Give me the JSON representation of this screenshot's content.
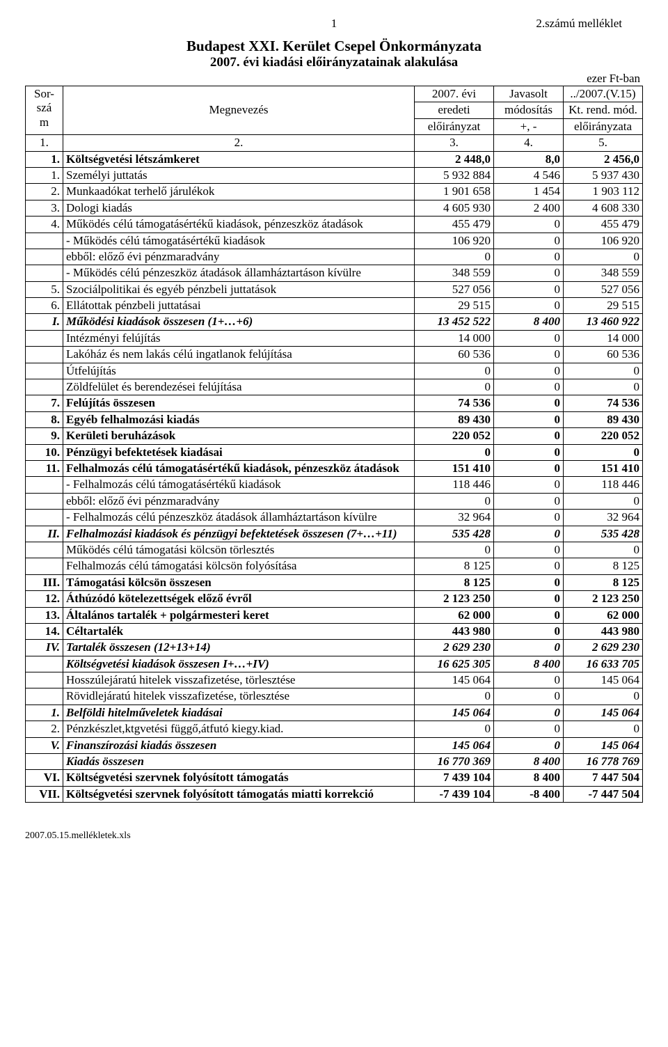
{
  "header": {
    "page_number": "1",
    "attachment": "2.számú melléklet"
  },
  "title": {
    "line1": "Budapest XXI. Kerület Csepel Önkormányzata",
    "line2": "2007. évi kiadási előirányzatainak alakulása"
  },
  "unit_label": "ezer Ft-ban",
  "col_header": {
    "sor1": "Sor-",
    "sor2": "szá",
    "sor3": "m",
    "name": "Megnevezés",
    "c1a": "2007. évi",
    "c1b": "eredeti",
    "c1c": "előirányzat",
    "c2a": "Javasolt",
    "c2b": "módosítás",
    "c2c": "+, -",
    "c3a": "../2007.(V.15)",
    "c3b": "Kt. rend. mód.",
    "c3c": "előirányzata",
    "n1": "1.",
    "n2": "2.",
    "n3": "3.",
    "n4": "4.",
    "n5": "5."
  },
  "rows": [
    {
      "num": "1.",
      "name": "Költségvetési létszámkeret",
      "v1": "2 448,0",
      "v2": "8,0",
      "v3": "2 456,0",
      "cls": "bold"
    },
    {
      "num": "1.",
      "name": "Személyi juttatás",
      "v1": "5 932 884",
      "v2": "4 546",
      "v3": "5 937 430"
    },
    {
      "num": "2.",
      "name": "Munkaadókat terhelő járulékok",
      "v1": "1 901 658",
      "v2": "1 454",
      "v3": "1 903 112"
    },
    {
      "num": "3.",
      "name": "Dologi kiadás",
      "v1": "4 605 930",
      "v2": "2 400",
      "v3": "4 608 330"
    },
    {
      "num": "4.",
      "name": "Működés célú támogatásértékű kiadások, pénzeszköz átadások",
      "v1": "455 479",
      "v2": "0",
      "v3": "455 479"
    },
    {
      "num": "",
      "name": "- Működés célú támogatásértékű kiadások",
      "v1": "106 920",
      "v2": "0",
      "v3": "106 920"
    },
    {
      "num": "",
      "name": "ebből: előző évi pénzmaradvány",
      "v1": "0",
      "v2": "0",
      "v3": "0"
    },
    {
      "num": "",
      "name": "- Működés célú pénzeszköz átadások államháztartáson kívülre",
      "v1": "348 559",
      "v2": "0",
      "v3": "348 559"
    },
    {
      "num": "5.",
      "name": "Szociálpolitikai és egyéb pénzbeli  juttatások",
      "v1": "527 056",
      "v2": "0",
      "v3": "527 056"
    },
    {
      "num": "6.",
      "name": "Ellátottak pénzbeli juttatásai",
      "v1": "29 515",
      "v2": "0",
      "v3": "29 515"
    },
    {
      "num": "I.",
      "name": "Működési kiadások összesen (1+…+6)",
      "v1": "13 452 522",
      "v2": "8 400",
      "v3": "13 460 922",
      "cls": "bolditalic"
    },
    {
      "num": "",
      "name": "Intézményi felújítás",
      "v1": "14 000",
      "v2": "0",
      "v3": "14 000"
    },
    {
      "num": "",
      "name": "Lakóház és nem lakás célú ingatlanok felújítása",
      "v1": "60 536",
      "v2": "0",
      "v3": "60 536"
    },
    {
      "num": "",
      "name": "Útfelújítás",
      "v1": "0",
      "v2": "0",
      "v3": "0"
    },
    {
      "num": "",
      "name": "Zöldfelület és berendezései felújítása",
      "v1": "0",
      "v2": "0",
      "v3": "0"
    },
    {
      "num": "7.",
      "name": "Felújítás összesen",
      "v1": "74 536",
      "v2": "0",
      "v3": "74 536",
      "cls": "bold"
    },
    {
      "num": "8.",
      "name": "Egyéb felhalmozási kiadás",
      "v1": "89 430",
      "v2": "0",
      "v3": "89 430",
      "cls": "bold"
    },
    {
      "num": "9.",
      "name": "Kerületi beruházások",
      "v1": "220 052",
      "v2": "0",
      "v3": "220 052",
      "cls": "bold"
    },
    {
      "num": "10.",
      "name": "Pénzügyi befektetések kiadásai",
      "v1": "0",
      "v2": "0",
      "v3": "0",
      "cls": "bold"
    },
    {
      "num": "11.",
      "name": "Felhalmozás célú támogatásértékű kiadások, pénzeszköz átadások",
      "v1": "151 410",
      "v2": "0",
      "v3": "151 410",
      "cls": "bold"
    },
    {
      "num": "",
      "name": "- Felhalmozás célú támogatásértékű kiadások",
      "v1": "118 446",
      "v2": "0",
      "v3": "118 446"
    },
    {
      "num": "",
      "name": "ebből: előző évi pénzmaradvány",
      "v1": "0",
      "v2": "0",
      "v3": "0"
    },
    {
      "num": "",
      "name": "- Felhalmozás célú pénzeszköz átadások államháztartáson kívülre",
      "v1": "32 964",
      "v2": "0",
      "v3": "32 964"
    },
    {
      "num": "II.",
      "name": "Felhalmozási kiadások és pénzügyi befektetések összesen (7+…+11)",
      "v1": "535 428",
      "v2": "0",
      "v3": "535 428",
      "cls": "bolditalic"
    },
    {
      "num": "",
      "name": "Működés célú támogatási kölcsön törlesztés",
      "v1": "0",
      "v2": "0",
      "v3": "0"
    },
    {
      "num": "",
      "name": "Felhalmozás célú támogatási kölcsön folyósítása",
      "v1": "8 125",
      "v2": "0",
      "v3": "8 125"
    },
    {
      "num": "III.",
      "name": "Támogatási kölcsön összesen",
      "v1": "8 125",
      "v2": "0",
      "v3": "8 125",
      "cls": "bold"
    },
    {
      "num": "12.",
      "name": "Áthúzódó kötelezettségek előző évről",
      "v1": "2 123 250",
      "v2": "0",
      "v3": "2 123 250",
      "cls": "bold"
    },
    {
      "num": "13.",
      "name": "Általános tartalék + polgármesteri keret",
      "v1": "62 000",
      "v2": "0",
      "v3": "62 000",
      "cls": "bold"
    },
    {
      "num": "14.",
      "name": "Céltartalék",
      "v1": "443 980",
      "v2": "0",
      "v3": "443 980",
      "cls": "bold"
    },
    {
      "num": "IV.",
      "name": "Tartalék összesen (12+13+14)",
      "v1": "2 629 230",
      "v2": "0",
      "v3": "2 629 230",
      "cls": "bolditalic"
    },
    {
      "num": "",
      "name": "Költségvetési kiadások összesen I+…+IV)",
      "v1": "16 625 305",
      "v2": "8 400",
      "v3": "16 633 705",
      "cls": "bolditalic"
    },
    {
      "num": "",
      "name": "Hosszúlejáratú hitelek visszafizetése, törlesztése",
      "v1": "145 064",
      "v2": "0",
      "v3": "145 064"
    },
    {
      "num": "",
      "name": "Rövidlejáratú hitelek visszafizetése, törlesztése",
      "v1": "0",
      "v2": "0",
      "v3": "0"
    },
    {
      "num": "1.",
      "name": "Belföldi hitelműveletek kiadásai",
      "v1": "145 064",
      "v2": "0",
      "v3": "145 064",
      "cls": "bolditalic"
    },
    {
      "num": "2.",
      "name": "Pénzkészlet,ktgvetési függő,átfutó kiegy.kiad.",
      "v1": "0",
      "v2": "0",
      "v3": "0"
    },
    {
      "num": "V.",
      "name": "Finanszírozási kiadás összesen",
      "v1": "145 064",
      "v2": "0",
      "v3": "145 064",
      "cls": "bolditalic"
    },
    {
      "num": "",
      "name": "Kiadás összesen",
      "v1": "16 770 369",
      "v2": "8 400",
      "v3": "16 778 769",
      "cls": "bolditalic"
    },
    {
      "num": "VI.",
      "name": "Költségvetési szervnek folyósított támogatás",
      "v1": "7 439 104",
      "v2": "8 400",
      "v3": "7 447 504",
      "cls": "bold"
    },
    {
      "num": "VII.",
      "name": "Költségvetési szervnek folyósított támogatás miatti korrekció",
      "v1": "-7 439 104",
      "v2": "-8 400",
      "v3": "-7 447 504",
      "cls": "bold"
    }
  ],
  "footer": "2007.05.15.mellékletek.xls"
}
